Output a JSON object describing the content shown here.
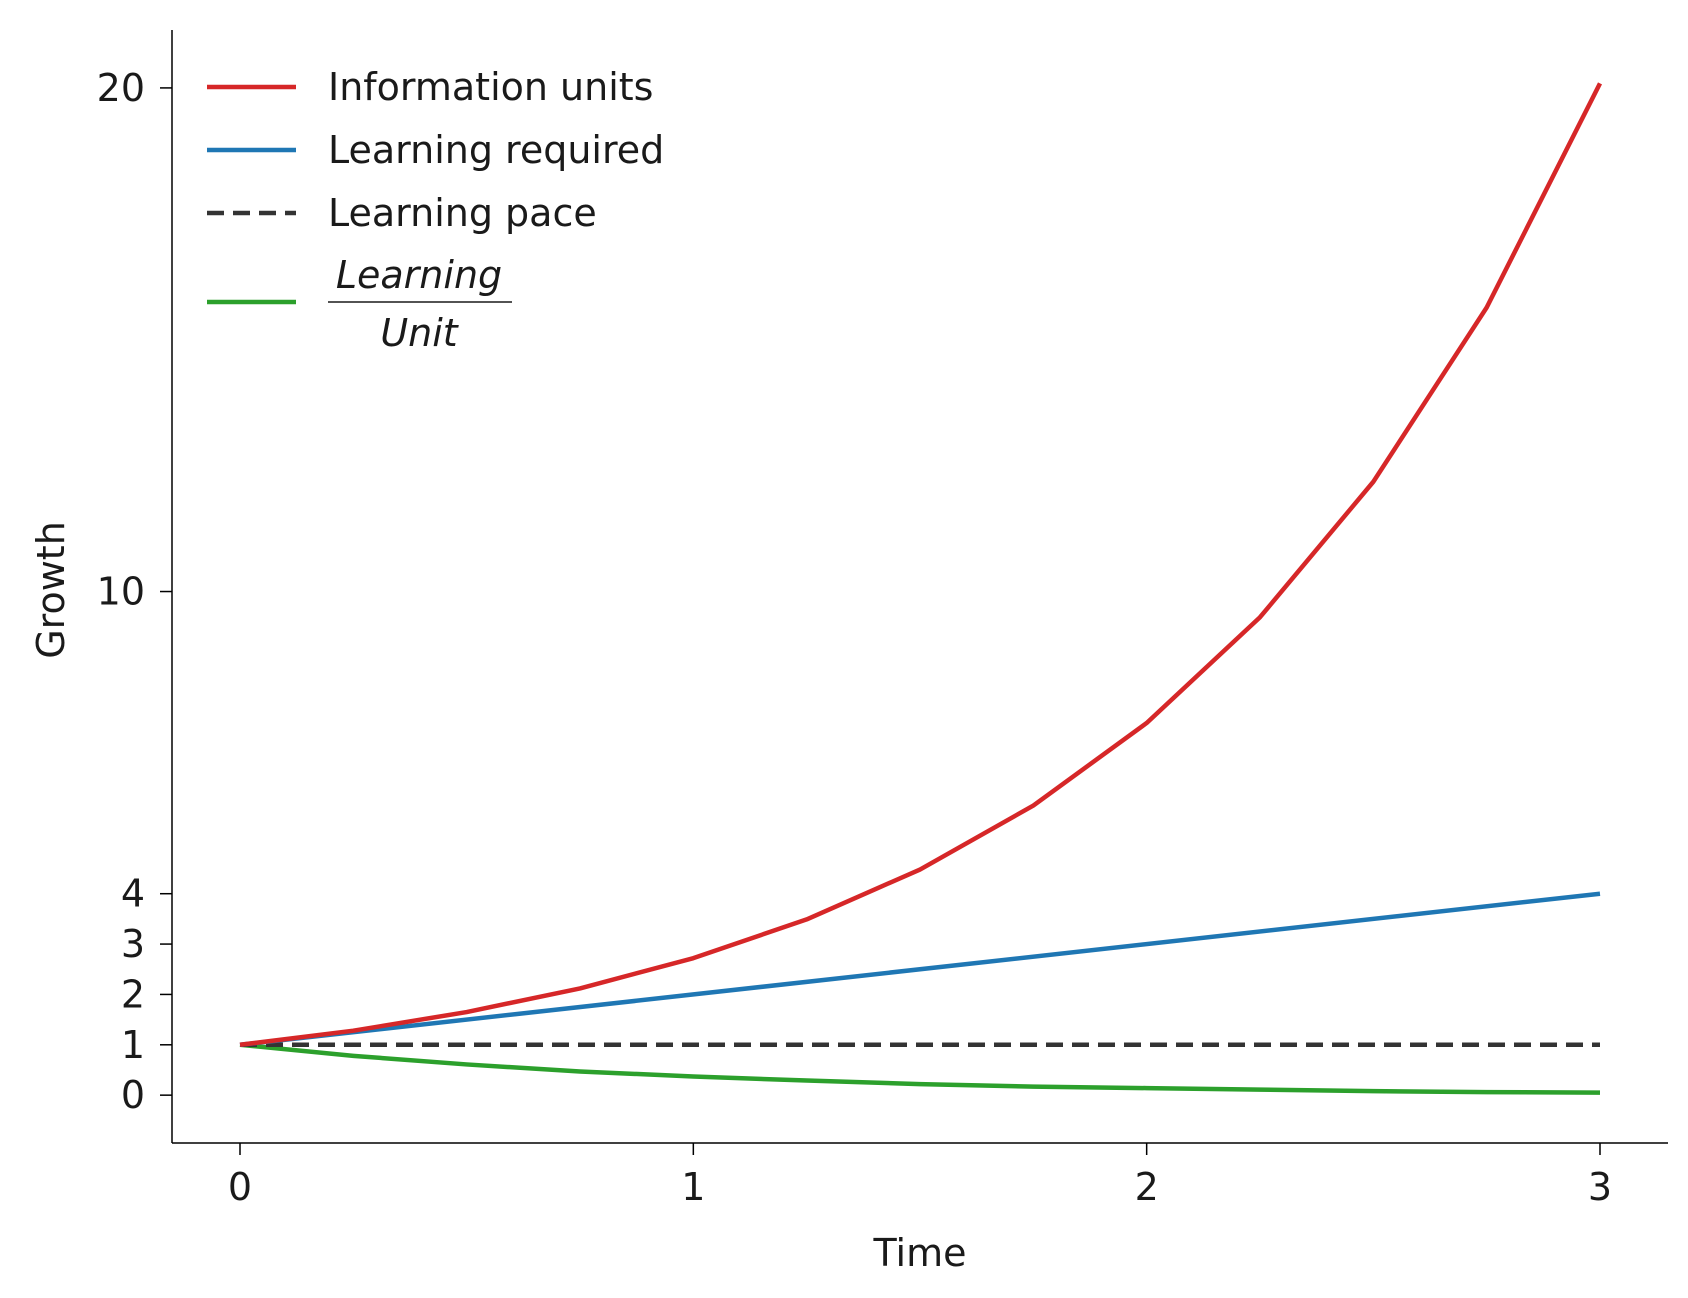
{
  "chart_data": {
    "type": "line",
    "title": "",
    "xlabel": "Time",
    "ylabel": "Growth",
    "xlim": [
      -0.15,
      3.15
    ],
    "ylim": [
      -0.95,
      21.15
    ],
    "x_ticks": [
      0,
      1,
      2,
      3
    ],
    "x_tick_labels": [
      "0",
      "1",
      "2",
      "3"
    ],
    "y_ticks": [
      0,
      1,
      2,
      3,
      4,
      10,
      20
    ],
    "y_tick_labels": [
      "0",
      "1",
      "2",
      "3",
      "4",
      "10",
      "20"
    ],
    "grid": false,
    "legend_position": "upper-left",
    "series": [
      {
        "name": "Information units",
        "color": "#d62728",
        "style": "solid",
        "x": [
          0,
          0.25,
          0.5,
          0.75,
          1.0,
          1.25,
          1.5,
          1.75,
          2.0,
          2.25,
          2.5,
          2.75,
          3.0
        ],
        "y": [
          1.0,
          1.28,
          1.65,
          2.12,
          2.72,
          3.49,
          4.48,
          5.75,
          7.39,
          9.49,
          12.18,
          15.64,
          20.09
        ]
      },
      {
        "name": "Learning required",
        "color": "#1f77b4",
        "style": "solid",
        "x": [
          0,
          3
        ],
        "y": [
          1,
          4
        ]
      },
      {
        "name": "Learning pace",
        "color": "#333333",
        "style": "dashed",
        "x": [
          0,
          3
        ],
        "y": [
          1,
          1
        ]
      },
      {
        "name": "Learning/Unit",
        "legend_numerator": "Learning",
        "legend_denominator": "Unit",
        "color": "#2ca02c",
        "style": "solid",
        "x": [
          0,
          0.25,
          0.5,
          0.75,
          1.0,
          1.25,
          1.5,
          1.75,
          2.0,
          2.25,
          2.5,
          2.75,
          3.0
        ],
        "y": [
          1.0,
          0.78,
          0.61,
          0.47,
          0.37,
          0.29,
          0.22,
          0.17,
          0.14,
          0.11,
          0.08,
          0.06,
          0.05
        ]
      }
    ]
  }
}
